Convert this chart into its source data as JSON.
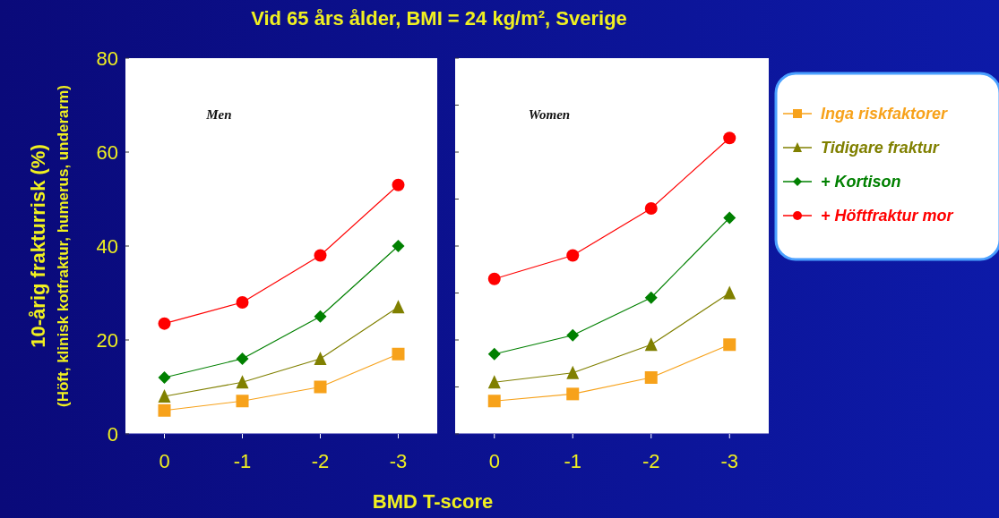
{
  "chart_data": [
    {
      "type": "line",
      "title": "Vid 65 års ålder, BMI = 24 kg/m², Sverige",
      "ylabel": "10-årig frakturrisk (%)\n(Höft, klinisk kotfraktur, humerus, underarm)",
      "xlabel": "BMD T-score",
      "annotations": [
        "Men"
      ],
      "categories": [
        "0",
        "-1",
        "-2",
        "-3"
      ],
      "ylim": [
        0,
        80
      ],
      "yticks": [
        0,
        20,
        40,
        60,
        80
      ],
      "legend": "right",
      "series": [
        {
          "name": "Inga riskfaktorer",
          "color": "#f7a21b",
          "marker": "square",
          "values": [
            5,
            7,
            10,
            17
          ]
        },
        {
          "name": "Tidigare fraktur",
          "color": "#808000",
          "marker": "triangle",
          "values": [
            8,
            11,
            16,
            27
          ]
        },
        {
          "name": "+ Kortison",
          "color": "#008000",
          "marker": "diamond",
          "values": [
            12,
            16,
            25,
            40
          ]
        },
        {
          "name": "+ Höftfraktur mor",
          "color": "#ff0000",
          "marker": "circle",
          "values": [
            23.5,
            28,
            38,
            53
          ]
        }
      ]
    },
    {
      "type": "line",
      "annotations": [
        "Women"
      ],
      "categories": [
        "0",
        "-1",
        "-2",
        "-3"
      ],
      "ylim": [
        0,
        80
      ],
      "yticks": [
        {
          "value": 0,
          "label": null
        },
        {
          "value": 10,
          "label": null
        },
        {
          "value": 20,
          "label": null
        },
        {
          "value": 30,
          "label": null
        },
        {
          "value": 40,
          "label": null
        },
        {
          "value": 50,
          "label": null
        },
        {
          "value": 60,
          "label": null
        },
        {
          "value": 70,
          "label": null
        },
        {
          "value": 80,
          "label": null
        }
      ],
      "tick_labels": "x",
      "series": [
        {
          "color": "#f7a21b",
          "marker": "square",
          "values": [
            7,
            8.5,
            12,
            19
          ]
        },
        {
          "color": "#808000",
          "marker": "triangle",
          "values": [
            11,
            13,
            19,
            30
          ]
        },
        {
          "color": "#008000",
          "marker": "diamond",
          "values": [
            17,
            21,
            29,
            46
          ]
        },
        {
          "color": "#ff0000",
          "marker": "circle",
          "values": [
            33,
            38,
            48,
            63
          ]
        }
      ]
    }
  ]
}
